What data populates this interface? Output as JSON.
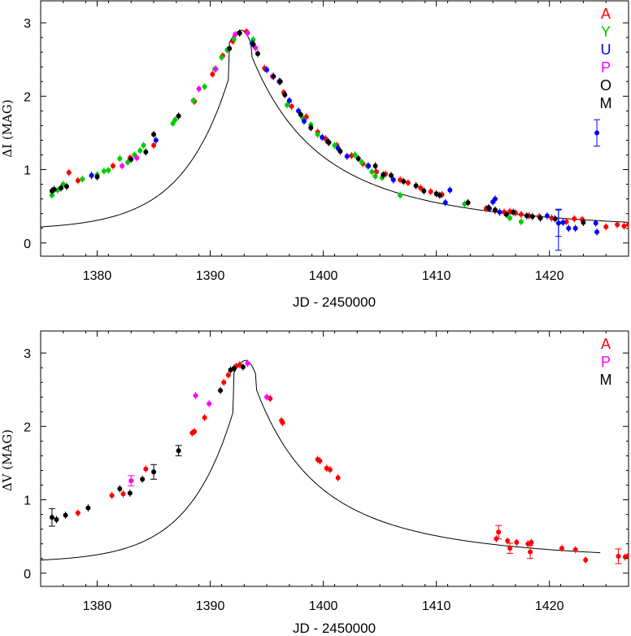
{
  "chart_data": [
    {
      "type": "scatter",
      "xlabel": "JD - 2450000",
      "ylabel": "ΔI (MAG)",
      "xlim": [
        1375,
        1427
      ],
      "ylim": [
        -0.18,
        3.3
      ],
      "xticks": [
        1380,
        1390,
        1400,
        1410,
        1420
      ],
      "yticks": [
        0,
        1,
        2,
        3
      ],
      "legend_position": "top-right",
      "legend": [
        {
          "label": "A",
          "color": "#ff0000"
        },
        {
          "label": "Y",
          "color": "#00cc00"
        },
        {
          "label": "U",
          "color": "#0000ff"
        },
        {
          "label": "P",
          "color": "#ff00ff"
        },
        {
          "label": "O",
          "color": "#000000"
        },
        {
          "label": "M",
          "color": "#000000"
        }
      ],
      "model_curve": {
        "t0": 1392.8,
        "peak": 2.9,
        "rise_tau": 4.2,
        "decay_tau": 6.2,
        "floor": 0.12,
        "rise_floor": 0.18
      },
      "series": [
        {
          "name": "A",
          "color": "#ff0000",
          "points": [
            [
              1377.5,
              0.96
            ],
            [
              1378.3,
              0.85
            ],
            [
              1379.5,
              0.92
            ],
            [
              1381.4,
              1.05
            ],
            [
              1382.9,
              1.16
            ],
            [
              1385.0,
              1.33
            ],
            [
              1388.6,
              1.93
            ],
            [
              1390.2,
              2.3
            ],
            [
              1391.1,
              2.55
            ],
            [
              1392.0,
              2.75
            ],
            [
              1393.2,
              2.88
            ],
            [
              1394.8,
              2.38
            ],
            [
              1396.5,
              2.05
            ],
            [
              1397.2,
              1.86
            ],
            [
              1398.5,
              1.72
            ],
            [
              1399.5,
              1.51
            ],
            [
              1400.2,
              1.42
            ],
            [
              1401.2,
              1.33
            ],
            [
              1402.5,
              1.19
            ],
            [
              1403.5,
              1.08
            ],
            [
              1404.7,
              0.97
            ],
            [
              1405.5,
              0.94
            ],
            [
              1406.8,
              0.86
            ],
            [
              1407.5,
              0.82
            ],
            [
              1408.6,
              0.75
            ],
            [
              1409.5,
              0.7
            ],
            [
              1410.5,
              0.66
            ],
            [
              1414.4,
              0.47
            ],
            [
              1415.2,
              0.44
            ],
            [
              1416.0,
              0.42
            ],
            [
              1416.5,
              0.43
            ],
            [
              1417.0,
              0.41
            ],
            [
              1417.5,
              0.39
            ],
            [
              1418.2,
              0.37
            ],
            [
              1419.1,
              0.36
            ],
            [
              1420.2,
              0.34
            ],
            [
              1421.5,
              0.29
            ],
            [
              1422.2,
              0.33
            ],
            [
              1422.9,
              0.32
            ],
            [
              1425.0,
              0.22
            ],
            [
              1426.0,
              0.25
            ],
            [
              1426.6,
              0.23
            ],
            [
              1427.0,
              0.25
            ]
          ]
        },
        {
          "name": "Y",
          "color": "#00cc00",
          "points": [
            [
              1376.0,
              0.65
            ],
            [
              1376.5,
              0.72
            ],
            [
              1377.0,
              0.8
            ],
            [
              1378.7,
              0.87
            ],
            [
              1380.0,
              0.93
            ],
            [
              1380.6,
              0.98
            ],
            [
              1381.0,
              0.99
            ],
            [
              1382.0,
              1.15
            ],
            [
              1382.7,
              1.1
            ],
            [
              1383.3,
              1.2
            ],
            [
              1383.8,
              1.26
            ],
            [
              1384.1,
              1.33
            ],
            [
              1386.7,
              1.63
            ],
            [
              1386.9,
              1.68
            ],
            [
              1388.5,
              1.94
            ],
            [
              1389.5,
              2.13
            ],
            [
              1390.4,
              2.37
            ],
            [
              1391.0,
              2.53
            ],
            [
              1391.5,
              2.63
            ],
            [
              1392.1,
              2.78
            ],
            [
              1393.8,
              2.77
            ],
            [
              1396.8,
              1.88
            ],
            [
              1398.2,
              1.7
            ],
            [
              1398.9,
              1.61
            ],
            [
              1399.5,
              1.48
            ],
            [
              1401.0,
              1.33
            ],
            [
              1402.8,
              1.2
            ],
            [
              1403.4,
              1.1
            ],
            [
              1403.9,
              1.05
            ],
            [
              1404.3,
              0.97
            ],
            [
              1404.6,
              0.91
            ],
            [
              1405.2,
              0.89
            ],
            [
              1406.8,
              0.65
            ],
            [
              1412.5,
              0.53
            ],
            [
              1416.5,
              0.34
            ],
            [
              1417.5,
              0.29
            ]
          ]
        },
        {
          "name": "U",
          "color": "#0000ff",
          "points": [
            [
              1379.5,
              0.92
            ],
            [
              1385.2,
              1.4
            ],
            [
              1393.7,
              2.72
            ],
            [
              1395.0,
              2.36
            ],
            [
              1396.1,
              2.2
            ],
            [
              1397.0,
              1.94
            ],
            [
              1397.8,
              1.8
            ],
            [
              1398.3,
              1.66
            ],
            [
              1399.9,
              1.44
            ],
            [
              1401.3,
              1.29
            ],
            [
              1402.1,
              1.18
            ],
            [
              1404.0,
              1.05
            ],
            [
              1406.2,
              0.86
            ],
            [
              1410.8,
              0.55
            ],
            [
              1411.2,
              0.72
            ],
            [
              1414.7,
              0.47
            ],
            [
              1415.0,
              0.56
            ],
            [
              1415.2,
              0.6
            ],
            [
              1415.6,
              0.42
            ],
            [
              1419.8,
              0.37
            ],
            [
              1420.8,
              0.27
            ],
            [
              1421.2,
              0.28
            ],
            [
              1421.7,
              0.2
            ],
            [
              1422.3,
              0.2
            ],
            [
              1424.1,
              0.27
            ],
            [
              1424.2,
              1.5
            ],
            [
              1424.2,
              0.15
            ]
          ],
          "errors": [
            [
              1424.2,
              1.5,
              0.18
            ],
            [
              1420.8,
              0.18,
              0.28
            ],
            [
              1420.8,
              0.27,
              0.18
            ]
          ]
        },
        {
          "name": "P",
          "color": "#ff00ff",
          "points": [
            [
              1382.2,
              1.05
            ],
            [
              1383.5,
              1.16
            ],
            [
              1389.0,
              2.1
            ],
            [
              1390.5,
              2.37
            ],
            [
              1392.2,
              2.84
            ],
            [
              1393.3,
              2.86
            ],
            [
              1394.0,
              2.66
            ],
            [
              1395.5,
              2.27
            ]
          ]
        },
        {
          "name": "O",
          "color": "#000000",
          "points": [
            [
              1376.2,
              0.73
            ],
            [
              1376.8,
              0.75
            ],
            [
              1377.3,
              0.77
            ],
            [
              1380.0,
              0.9
            ],
            [
              1383.0,
              1.14
            ],
            [
              1384.3,
              1.24
            ],
            [
              1391.7,
              2.65
            ],
            [
              1392.6,
              2.86
            ],
            [
              1393.8,
              2.71
            ],
            [
              1395.6,
              2.27
            ],
            [
              1396.6,
              2.02
            ],
            [
              1398.9,
              1.57
            ],
            [
              1400.4,
              1.38
            ],
            [
              1401.5,
              1.25
            ],
            [
              1403.1,
              1.15
            ],
            [
              1405.3,
              0.93
            ],
            [
              1407.1,
              0.84
            ],
            [
              1408.9,
              0.71
            ],
            [
              1410.3,
              0.65
            ],
            [
              1412.8,
              0.55
            ],
            [
              1415.2,
              0.45
            ],
            [
              1416.8,
              0.42
            ],
            [
              1418.5,
              0.36
            ],
            [
              1419.2,
              0.34
            ],
            [
              1423.0,
              0.28
            ]
          ]
        },
        {
          "name": "M",
          "color": "#000000",
          "points": [
            [
              1376.0,
              0.71
            ],
            [
              1385.0,
              1.48
            ],
            [
              1387.2,
              1.73
            ],
            [
              1394.2,
              2.58
            ],
            [
              1396.2,
              2.2
            ],
            [
              1398.0,
              1.75
            ],
            [
              1400.5,
              1.37
            ],
            [
              1404.6,
              1.05
            ],
            [
              1406.0,
              0.92
            ],
            [
              1408.2,
              0.78
            ],
            [
              1410.0,
              0.67
            ],
            [
              1414.6,
              0.48
            ],
            [
              1416.2,
              0.39
            ],
            [
              1418.0,
              0.37
            ],
            [
              1420.5,
              0.33
            ]
          ]
        }
      ]
    },
    {
      "type": "scatter",
      "xlabel": "JD - 2450000",
      "ylabel": "ΔV (MAG)",
      "xlim": [
        1375,
        1427
      ],
      "ylim": [
        -0.18,
        3.3
      ],
      "xticks": [
        1380,
        1390,
        1400,
        1410,
        1420
      ],
      "yticks": [
        0,
        1,
        2,
        3
      ],
      "legend_position": "top-right",
      "legend": [
        {
          "label": "A",
          "color": "#ff0000"
        },
        {
          "label": "P",
          "color": "#ff00ff"
        },
        {
          "label": "M",
          "color": "#000000"
        }
      ],
      "model_curve": {
        "t0": 1393.2,
        "peak": 2.9,
        "rise_tau": 4.0,
        "decay_tau": 5.6,
        "floor": 0.12,
        "rise_floor": 0.15,
        "x_end": 1424.5
      },
      "series": [
        {
          "name": "A",
          "color": "#ff0000",
          "points": [
            [
              1378.3,
              0.82
            ],
            [
              1381.3,
              1.06
            ],
            [
              1382.3,
              1.08
            ],
            [
              1384.3,
              1.42
            ],
            [
              1388.4,
              1.91
            ],
            [
              1388.6,
              1.93
            ],
            [
              1389.5,
              2.12
            ],
            [
              1391.2,
              2.6
            ],
            [
              1391.6,
              2.7
            ],
            [
              1392.3,
              2.82
            ],
            [
              1392.6,
              2.84
            ],
            [
              1395.3,
              2.38
            ],
            [
              1396.3,
              2.08
            ],
            [
              1396.4,
              2.05
            ],
            [
              1399.5,
              1.55
            ],
            [
              1399.7,
              1.53
            ],
            [
              1400.3,
              1.43
            ],
            [
              1400.6,
              1.41
            ],
            [
              1401.3,
              1.3
            ],
            [
              1415.3,
              0.47
            ],
            [
              1415.5,
              0.56
            ],
            [
              1416.3,
              0.44
            ],
            [
              1416.5,
              0.34
            ],
            [
              1417.1,
              0.42
            ],
            [
              1418.1,
              0.4
            ],
            [
              1418.3,
              0.29
            ],
            [
              1418.4,
              0.42
            ],
            [
              1421.1,
              0.34
            ],
            [
              1422.3,
              0.32
            ],
            [
              1423.2,
              0.18
            ],
            [
              1426.1,
              0.23
            ],
            [
              1426.7,
              0.22
            ],
            [
              1427.0,
              0.24
            ]
          ],
          "errors": [
            [
              1415.5,
              0.56,
              0.09
            ],
            [
              1416.5,
              0.34,
              0.07
            ],
            [
              1418.3,
              0.29,
              0.09
            ],
            [
              1426.1,
              0.23,
              0.1
            ]
          ]
        },
        {
          "name": "P",
          "color": "#ff00ff",
          "points": [
            [
              1383.0,
              1.26
            ],
            [
              1388.7,
              2.42
            ],
            [
              1389.9,
              2.31
            ],
            [
              1393.3,
              2.86
            ],
            [
              1395.0,
              2.4
            ]
          ],
          "errors": [
            [
              1383.0,
              1.26,
              0.07
            ]
          ]
        },
        {
          "name": "M",
          "color": "#000000",
          "points": [
            [
              1376.0,
              0.76
            ],
            [
              1376.4,
              0.73
            ],
            [
              1377.2,
              0.79
            ],
            [
              1379.2,
              0.89
            ],
            [
              1382.0,
              1.15
            ],
            [
              1382.9,
              1.09
            ],
            [
              1384.0,
              1.28
            ],
            [
              1385.0,
              1.38
            ],
            [
              1387.2,
              1.67
            ],
            [
              1390.9,
              2.49
            ],
            [
              1391.8,
              2.77
            ],
            [
              1392.1,
              2.79
            ],
            [
              1392.9,
              2.81
            ]
          ],
          "errors": [
            [
              1376.0,
              0.76,
              0.12
            ],
            [
              1385.0,
              1.38,
              0.1
            ],
            [
              1387.2,
              1.67,
              0.07
            ]
          ]
        }
      ]
    }
  ]
}
